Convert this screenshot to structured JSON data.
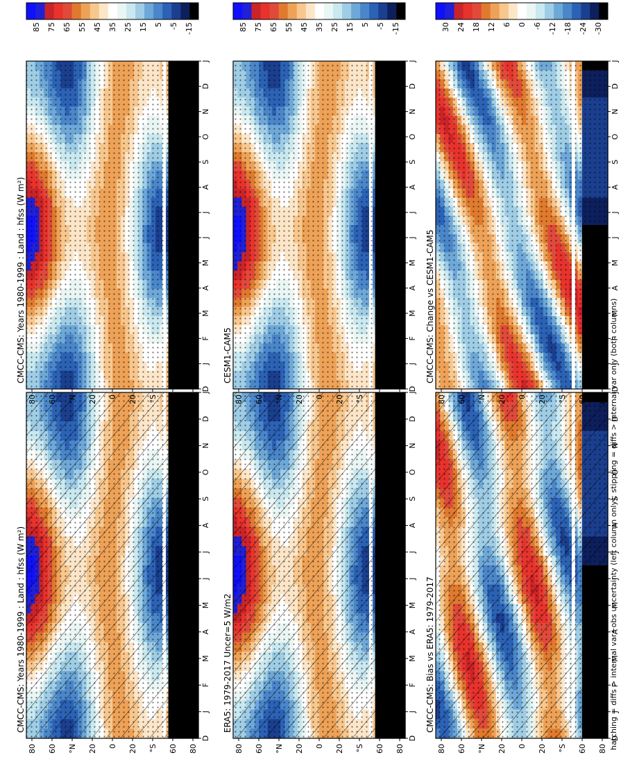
{
  "footnote": "hatching = diffs > internal var+obs uncertainty (left column only); stippling = diffs > internal var only (both columns)",
  "colors": {
    "abs_scale": [
      "#000000",
      "#0d1f5c",
      "#1b3f8f",
      "#2b62b5",
      "#4a86c9",
      "#6ea8d8",
      "#9fcde6",
      "#c9e8f0",
      "#eaf6f4",
      "#ffffff",
      "#fde6c8",
      "#f8c78e",
      "#eea257",
      "#e07a2e",
      "#e04a3b",
      "#e8322c",
      "#c8242a",
      "#2020d6",
      "#1010ff"
    ],
    "diff_scale": [
      "#000000",
      "#0d1f5c",
      "#1b3f8f",
      "#2b62b5",
      "#4a86c9",
      "#6ea8d8",
      "#9fcde6",
      "#c9e8f0",
      "#eaf6f4",
      "#ffffff",
      "#fde6c8",
      "#f8c78e",
      "#eea257",
      "#e07a2e",
      "#e04a3b",
      "#e8322c",
      "#c8242a",
      "#2020d6",
      "#1010ff"
    ]
  },
  "chart_data": [
    {
      "type": "heatmap",
      "title": "CMCC-CMS: Years 1980-1999 : Land : hfss (W m²)",
      "x": [
        "D",
        "J",
        "F",
        "M",
        "A",
        "M",
        "J",
        "J",
        "A",
        "S",
        "O",
        "N",
        "D",
        "J"
      ],
      "y_ticks": [
        "80",
        "60",
        "°N",
        "20",
        "0",
        "20",
        "°S",
        "60",
        "80"
      ],
      "colorbar": [
        "85",
        "75",
        "65",
        "55",
        "45",
        "35",
        "25",
        "15",
        "5",
        "-5",
        "-15"
      ],
      "hatching": true,
      "stippling": true
    },
    {
      "type": "heatmap",
      "title": "CMCC-CMS: Years 1980-1999 : Land : hfss (W m²)",
      "x": [
        "D",
        "J",
        "F",
        "M",
        "A",
        "M",
        "J",
        "J",
        "A",
        "S",
        "O",
        "N",
        "D",
        "J"
      ],
      "y_ticks": [
        "80",
        "60",
        "°N",
        "20",
        "0",
        "20",
        "°S",
        "60",
        "80"
      ],
      "colorbar": [
        "85",
        "75",
        "65",
        "55",
        "45",
        "35",
        "25",
        "15",
        "5",
        "-5",
        "-15"
      ],
      "hatching": false,
      "stippling": true
    },
    {
      "type": "heatmap",
      "title": "ERA5: 1979-2017 Uncer=5 W/m2",
      "x": [
        "D",
        "J",
        "F",
        "M",
        "A",
        "M",
        "J",
        "J",
        "A",
        "S",
        "O",
        "N",
        "D",
        "J"
      ],
      "y_ticks": [
        "80",
        "60",
        "°N",
        "20",
        "0",
        "20",
        "°S",
        "60",
        "80"
      ],
      "colorbar": [
        "85",
        "75",
        "65",
        "55",
        "45",
        "35",
        "25",
        "15",
        "5",
        "-5",
        "-15"
      ],
      "hatching": true,
      "stippling": true
    },
    {
      "type": "heatmap",
      "title": "CESM1-CAM5",
      "x": [
        "D",
        "J",
        "F",
        "M",
        "A",
        "M",
        "J",
        "J",
        "A",
        "S",
        "O",
        "N",
        "D",
        "J"
      ],
      "y_ticks": [
        "80",
        "60",
        "°N",
        "20",
        "0",
        "20",
        "°S",
        "60",
        "80"
      ],
      "colorbar": [
        "85",
        "75",
        "65",
        "55",
        "45",
        "35",
        "25",
        "15",
        "5",
        "-5",
        "-15"
      ],
      "hatching": false,
      "stippling": true
    },
    {
      "type": "heatmap",
      "title": "CMCC-CMS: Bias vs ERA5: 1979-2017",
      "x": [
        "D",
        "J",
        "F",
        "M",
        "A",
        "M",
        "J",
        "J",
        "A",
        "S",
        "O",
        "N",
        "D",
        "J"
      ],
      "y_ticks": [
        "80",
        "60",
        "°N",
        "20",
        "0",
        "20",
        "°S",
        "60",
        "80"
      ],
      "colorbar": [
        "30",
        "24",
        "18",
        "12",
        "6",
        "0",
        "-6",
        "-12",
        "-18",
        "-24",
        "-30"
      ],
      "hatching": true,
      "stippling": true
    },
    {
      "type": "heatmap",
      "title": "CMCC-CMS: Change vs CESM1-CAM5",
      "x": [
        "D",
        "J",
        "F",
        "M",
        "A",
        "M",
        "J",
        "J",
        "A",
        "S",
        "O",
        "N",
        "D",
        "J"
      ],
      "y_ticks": [
        "80",
        "60",
        "°N",
        "20",
        "0",
        "20",
        "°S",
        "60",
        "80"
      ],
      "colorbar": [
        "30",
        "24",
        "18",
        "12",
        "6",
        "0",
        "-6",
        "-12",
        "-18",
        "-24",
        "-30"
      ],
      "hatching": false,
      "stippling": true
    }
  ]
}
